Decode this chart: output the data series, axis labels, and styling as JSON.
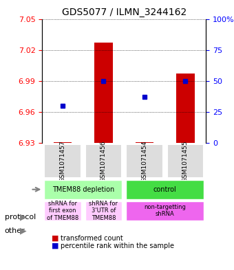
{
  "title": "GDS5077 / ILMN_3244162",
  "samples": [
    "GSM1071457",
    "GSM1071456",
    "GSM1071454",
    "GSM1071455"
  ],
  "red_values": [
    6.931,
    7.027,
    6.931,
    6.997
  ],
  "blue_values": [
    6.966,
    6.99,
    6.975,
    6.99
  ],
  "ylim": [
    6.93,
    7.05
  ],
  "yticks": [
    6.93,
    6.96,
    6.99,
    7.02,
    7.05
  ],
  "y2ticks": [
    0,
    25,
    50,
    75,
    100
  ],
  "y2labels": [
    "0",
    "25",
    "50",
    "75",
    "100%"
  ],
  "bar_color": "#cc0000",
  "dot_color": "#0000cc",
  "bar_bottom": 6.93,
  "protocol_row": [
    {
      "label": "TMEM88 depletion",
      "cols": [
        0,
        1
      ],
      "color": "#aaffaa"
    },
    {
      "label": "control",
      "cols": [
        2,
        3
      ],
      "color": "#44dd44"
    }
  ],
  "other_row": [
    {
      "label": "shRNA for\nfirst exon\nof TMEM88",
      "cols": [
        0
      ],
      "color": "#ffccff"
    },
    {
      "label": "shRNA for\n3'UTR of\nTMEM88",
      "cols": [
        1
      ],
      "color": "#ffccff"
    },
    {
      "label": "non-targetting\nshRNA",
      "cols": [
        2,
        3
      ],
      "color": "#ee66ee"
    }
  ],
  "legend_red": "transformed count",
  "legend_blue": "percentile rank within the sample",
  "row_label_protocol": "protocol",
  "row_label_other": "other",
  "bg_color": "#dddddd"
}
